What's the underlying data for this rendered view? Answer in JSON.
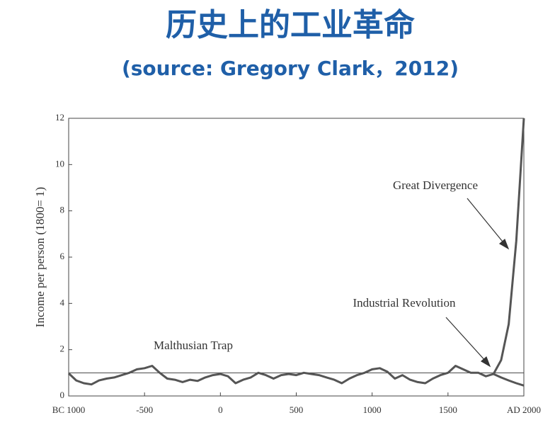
{
  "chart_data": {
    "type": "line",
    "title": "历史上的工业革命",
    "subtitle": "(source: Gregory Clark，2012)",
    "y_label": "Income per person (1800= 1)",
    "annotations": [
      "Malthusian Trap",
      "Industrial Revolution",
      "Great Divergence"
    ],
    "x": [
      -1000,
      -950,
      -900,
      -850,
      -800,
      -750,
      -700,
      -650,
      -600,
      -550,
      -500,
      -450,
      -400,
      -350,
      -300,
      -250,
      -200,
      -150,
      -100,
      -50,
      0,
      50,
      100,
      150,
      200,
      250,
      300,
      350,
      400,
      450,
      500,
      550,
      600,
      650,
      700,
      750,
      800,
      850,
      900,
      950,
      1000,
      1050,
      1100,
      1150,
      1200,
      1250,
      1300,
      1350,
      1400,
      1450,
      1500,
      1550,
      1600,
      1650,
      1700,
      1750,
      1800,
      1850,
      1900,
      1950,
      2000
    ],
    "series": [
      {
        "color": "#555555",
        "values": [
          0.98,
          0.67,
          0.55,
          0.5,
          0.67,
          0.75,
          0.8,
          0.9,
          1.0,
          1.15,
          1.2,
          1.3,
          1.0,
          0.75,
          0.7,
          0.6,
          0.7,
          0.65,
          0.8,
          0.9,
          0.95,
          0.85,
          0.55,
          0.7,
          0.8,
          1.0,
          0.9,
          0.75,
          0.9,
          0.95,
          0.9,
          1.0,
          0.95,
          0.9,
          0.8,
          0.7,
          0.55,
          0.75,
          0.9,
          1.0,
          1.15,
          1.2,
          1.05,
          0.75,
          0.9,
          0.7,
          0.6,
          0.55,
          0.75,
          0.9,
          1.0,
          1.3,
          1.15,
          1.0,
          1.0,
          0.85,
          0.95,
          1.55,
          3.1,
          6.7,
          12
        ]
      },
      {
        "color": "#555555",
        "values": [
          null,
          null,
          null,
          null,
          null,
          null,
          null,
          null,
          null,
          null,
          null,
          null,
          null,
          null,
          null,
          null,
          null,
          null,
          null,
          null,
          null,
          null,
          null,
          null,
          null,
          null,
          null,
          null,
          null,
          null,
          null,
          null,
          null,
          null,
          null,
          null,
          null,
          null,
          null,
          null,
          null,
          null,
          null,
          null,
          null,
          null,
          null,
          null,
          null,
          null,
          null,
          null,
          null,
          null,
          null,
          null,
          0.95,
          0.8,
          0.67,
          0.55,
          0.45
        ]
      }
    ],
    "hline": 1,
    "xlim": [
      -1000,
      2000
    ],
    "xticks": [
      {
        "value": -1000,
        "label": "BC 1000"
      },
      -500,
      0,
      500,
      1000,
      1500,
      {
        "value": 2000,
        "label": "AD 2000"
      }
    ],
    "ylim": [
      0,
      12
    ],
    "yticks": [
      0,
      2,
      4,
      6,
      8,
      10,
      12
    ],
    "title_color": "#1f5fa8"
  }
}
